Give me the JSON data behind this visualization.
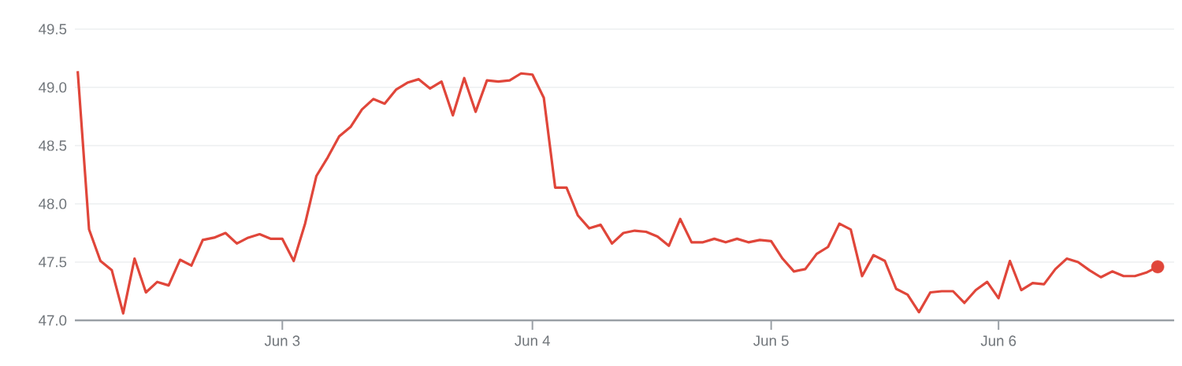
{
  "chart_data": {
    "type": "line",
    "ylim": [
      47.0,
      49.5
    ],
    "categories": [
      null,
      null,
      null,
      null,
      null,
      null,
      null,
      null,
      null,
      null,
      null,
      null,
      null,
      null,
      null,
      null,
      null,
      null,
      "Jun 3",
      null,
      null,
      null,
      null,
      null,
      null,
      null,
      null,
      null,
      null,
      null,
      null,
      null,
      null,
      null,
      null,
      null,
      null,
      null,
      null,
      null,
      "Jun 4",
      null,
      null,
      null,
      null,
      null,
      null,
      null,
      null,
      null,
      null,
      null,
      null,
      null,
      null,
      null,
      null,
      null,
      null,
      null,
      null,
      "Jun 5",
      null,
      null,
      null,
      null,
      null,
      null,
      null,
      null,
      null,
      null,
      null,
      null,
      null,
      null,
      null,
      null,
      null,
      null,
      null,
      "Jun 6",
      null,
      null,
      null,
      null,
      null,
      null,
      null,
      null,
      null,
      null,
      null,
      null,
      null,
      null
    ],
    "yticks": [
      {
        "value": 47.0,
        "label": "47.0"
      },
      {
        "value": 47.5,
        "label": "47.5"
      },
      {
        "value": 48.0,
        "label": "48.0"
      },
      {
        "value": 48.5,
        "label": "48.5"
      },
      {
        "value": 49.0,
        "label": "49.0"
      },
      {
        "value": 49.5,
        "label": "49.5"
      }
    ],
    "grid": "y",
    "series": [
      {
        "color": "#e0463a",
        "values": [
          49.14,
          47.78,
          47.51,
          47.43,
          47.06,
          47.53,
          47.24,
          47.33,
          47.3,
          47.52,
          47.47,
          47.69,
          47.71,
          47.75,
          47.66,
          47.71,
          47.74,
          47.7,
          47.7,
          47.51,
          47.83,
          48.24,
          48.4,
          48.58,
          48.66,
          48.81,
          48.9,
          48.86,
          48.98,
          49.04,
          49.07,
          48.99,
          49.05,
          48.76,
          49.08,
          48.79,
          49.06,
          49.05,
          49.06,
          49.12,
          49.11,
          48.91,
          48.14,
          48.14,
          47.9,
          47.79,
          47.82,
          47.66,
          47.75,
          47.77,
          47.76,
          47.72,
          47.64,
          47.87,
          47.67,
          47.67,
          47.7,
          47.67,
          47.7,
          47.67,
          47.69,
          47.68,
          47.53,
          47.42,
          47.44,
          47.57,
          47.63,
          47.83,
          47.78,
          47.38,
          47.56,
          47.51,
          47.27,
          47.22,
          47.07,
          47.24,
          47.25,
          47.25,
          47.15,
          47.26,
          47.33,
          47.19,
          47.51,
          47.26,
          47.32,
          47.31,
          47.44,
          47.53,
          47.5,
          47.43,
          47.37,
          47.42,
          47.38,
          47.38,
          47.41,
          47.46
        ]
      },
      {
        "type": "scatter",
        "color": "#e0463a",
        "values": [
          null,
          null,
          null,
          null,
          null,
          null,
          null,
          null,
          null,
          null,
          null,
          null,
          null,
          null,
          null,
          null,
          null,
          null,
          null,
          null,
          null,
          null,
          null,
          null,
          null,
          null,
          null,
          null,
          null,
          null,
          null,
          null,
          null,
          null,
          null,
          null,
          null,
          null,
          null,
          null,
          null,
          null,
          null,
          null,
          null,
          null,
          null,
          null,
          null,
          null,
          null,
          null,
          null,
          null,
          null,
          null,
          null,
          null,
          null,
          null,
          null,
          null,
          null,
          null,
          null,
          null,
          null,
          null,
          null,
          null,
          null,
          null,
          null,
          null,
          null,
          null,
          null,
          null,
          null,
          null,
          null,
          null,
          null,
          null,
          null,
          null,
          null,
          null,
          null,
          null,
          null,
          null,
          null,
          null,
          null,
          47.46
        ]
      }
    ]
  }
}
